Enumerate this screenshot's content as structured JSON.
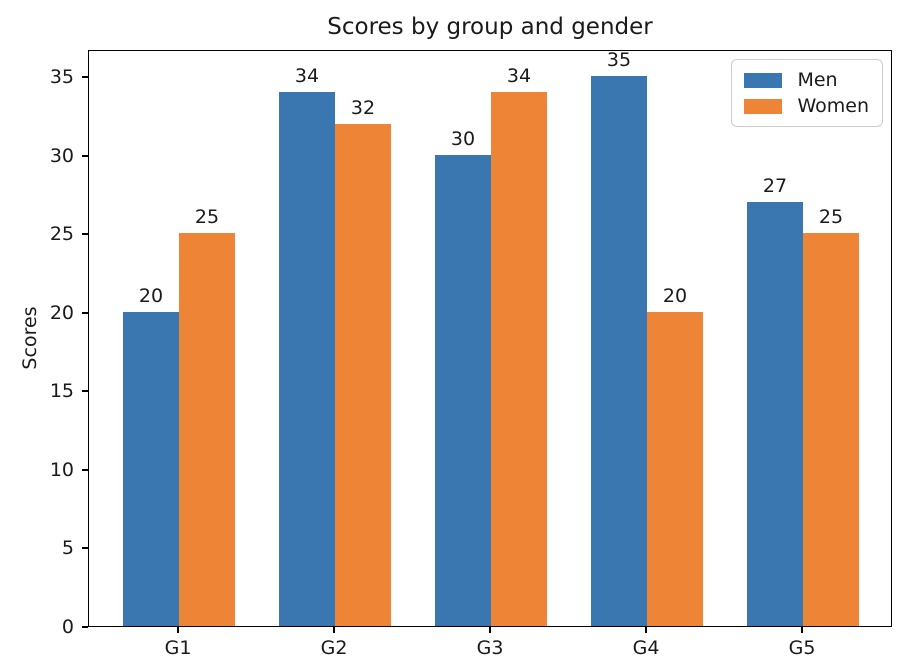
{
  "chart_data": {
    "type": "bar",
    "title": "Scores by group and gender",
    "xlabel": "",
    "ylabel": "Scores",
    "categories": [
      "G1",
      "G2",
      "G3",
      "G4",
      "G5"
    ],
    "series": [
      {
        "name": "Men",
        "color": "#3A76AF",
        "values": [
          20,
          34,
          30,
          35,
          27
        ]
      },
      {
        "name": "Women",
        "color": "#EE8536",
        "values": [
          25,
          32,
          34,
          20,
          25
        ]
      }
    ],
    "yticks": [
      0,
      5,
      10,
      15,
      20,
      25,
      30,
      35
    ],
    "ylim": [
      0,
      36.75
    ],
    "bar_width_ratio": 0.35,
    "bar_value_labels": true,
    "grid": false,
    "legend": {
      "position": "upper right",
      "labels": [
        "Men",
        "Women"
      ]
    }
  },
  "colors": {
    "text": "#1a1a1a",
    "spine": "#000000",
    "legend_border": "#cccccc",
    "background": "#ffffff"
  }
}
